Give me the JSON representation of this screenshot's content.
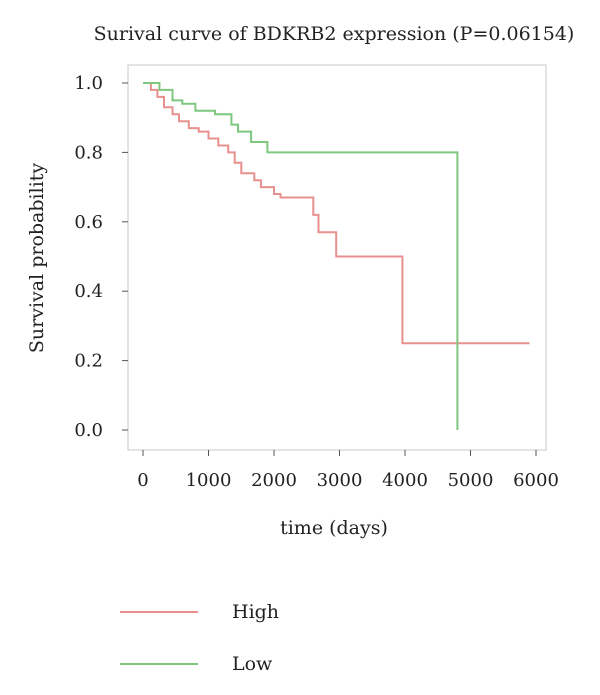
{
  "chart_data": {
    "type": "line",
    "title": "Surival curve of BDKRB2 expression (P=0.06154)",
    "xlabel": "time (days)",
    "ylabel": "Survival probability",
    "xlim": [
      0,
      6000
    ],
    "ylim": [
      0.0,
      1.0
    ],
    "x_ticks": [
      "0",
      "1000",
      "2000",
      "3000",
      "4000",
      "5000",
      "6000"
    ],
    "y_ticks": [
      "0.0",
      "0.2",
      "0.4",
      "0.6",
      "0.8",
      "1.0"
    ],
    "grid": false,
    "legend_position": "bottom-left",
    "series": [
      {
        "name": "High",
        "color": "#e8908e",
        "points": [
          [
            0,
            1.0
          ],
          [
            120,
            1.0
          ],
          [
            120,
            0.98
          ],
          [
            220,
            0.98
          ],
          [
            220,
            0.96
          ],
          [
            320,
            0.96
          ],
          [
            320,
            0.93
          ],
          [
            450,
            0.93
          ],
          [
            450,
            0.91
          ],
          [
            550,
            0.91
          ],
          [
            550,
            0.89
          ],
          [
            700,
            0.89
          ],
          [
            700,
            0.87
          ],
          [
            850,
            0.87
          ],
          [
            850,
            0.86
          ],
          [
            1000,
            0.86
          ],
          [
            1000,
            0.84
          ],
          [
            1150,
            0.84
          ],
          [
            1150,
            0.82
          ],
          [
            1300,
            0.82
          ],
          [
            1300,
            0.8
          ],
          [
            1400,
            0.8
          ],
          [
            1400,
            0.77
          ],
          [
            1500,
            0.77
          ],
          [
            1500,
            0.74
          ],
          [
            1700,
            0.74
          ],
          [
            1700,
            0.72
          ],
          [
            1800,
            0.72
          ],
          [
            1800,
            0.7
          ],
          [
            2000,
            0.7
          ],
          [
            2000,
            0.68
          ],
          [
            2100,
            0.68
          ],
          [
            2100,
            0.67
          ],
          [
            2600,
            0.67
          ],
          [
            2600,
            0.62
          ],
          [
            2680,
            0.62
          ],
          [
            2680,
            0.57
          ],
          [
            2950,
            0.57
          ],
          [
            2950,
            0.5
          ],
          [
            3960,
            0.5
          ],
          [
            3960,
            0.25
          ],
          [
            5900,
            0.25
          ]
        ]
      },
      {
        "name": "Low",
        "color": "#7ec77e",
        "points": [
          [
            0,
            1.0
          ],
          [
            250,
            1.0
          ],
          [
            250,
            0.98
          ],
          [
            450,
            0.98
          ],
          [
            450,
            0.95
          ],
          [
            600,
            0.95
          ],
          [
            600,
            0.94
          ],
          [
            800,
            0.94
          ],
          [
            800,
            0.92
          ],
          [
            1100,
            0.92
          ],
          [
            1100,
            0.91
          ],
          [
            1350,
            0.91
          ],
          [
            1350,
            0.88
          ],
          [
            1450,
            0.88
          ],
          [
            1450,
            0.86
          ],
          [
            1650,
            0.86
          ],
          [
            1650,
            0.83
          ],
          [
            1900,
            0.83
          ],
          [
            1900,
            0.8
          ],
          [
            4800,
            0.8
          ],
          [
            4800,
            0.0
          ]
        ]
      }
    ]
  }
}
